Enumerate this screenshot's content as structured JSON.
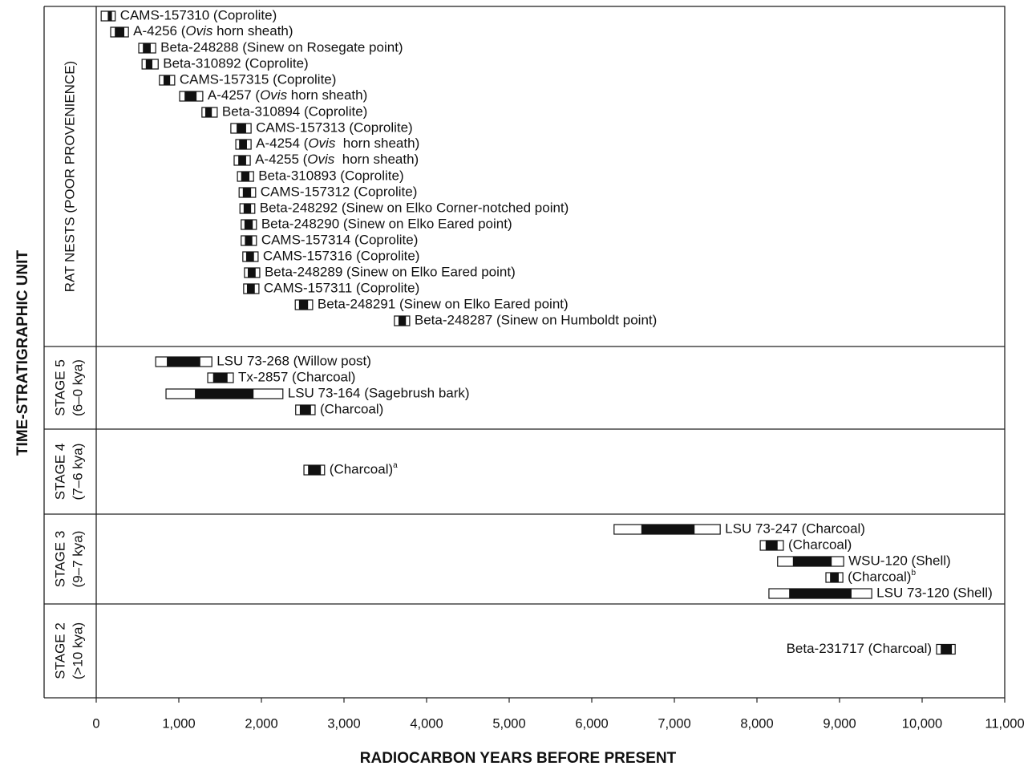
{
  "chart_data": {
    "type": "range",
    "xlabel": "RADIOCARBON YEARS BEFORE PRESENT",
    "ylabel": "TIME-STRATIGRAPHIC UNIT",
    "xlim": [
      0,
      11000
    ],
    "xticks": [
      0,
      {
        "value": 1000,
        "label": "1,000"
      },
      {
        "value": 2000,
        "label": "2,000"
      },
      {
        "value": 3000,
        "label": "3,000"
      },
      {
        "value": 4000,
        "label": "4,000"
      },
      {
        "value": 5000,
        "label": "5,000"
      },
      {
        "value": 6000,
        "label": "6,000"
      },
      {
        "value": 7000,
        "label": "7,000"
      },
      {
        "value": 8000,
        "label": "8,000"
      },
      {
        "value": 9000,
        "label": "9,000"
      },
      {
        "value": 10000,
        "label": "10,000"
      },
      {
        "value": 11000,
        "label": "11,000"
      }
    ],
    "groups": [
      {
        "name": "RAT NESTS (POOR PROVENIENCE)",
        "items": [
          {
            "label": "CAMS-157310 (Coprolite)",
            "outer": [
              60,
              230
            ],
            "inner": [
              140,
              190
            ]
          },
          {
            "label": "A-4256 (Ovis horn sheath)",
            "italic": "Ovis",
            "outer": [
              175,
              390
            ],
            "inner": [
              225,
              340
            ]
          },
          {
            "label": "Beta-248288 (Sinew on Rosegate point)",
            "outer": [
              515,
              720
            ],
            "inner": [
              565,
              660
            ]
          },
          {
            "label": "Beta-310892 (Coprolite)",
            "outer": [
              555,
              750
            ],
            "inner": [
              600,
              680
            ]
          },
          {
            "label": "CAMS-157315 (Coprolite)",
            "outer": [
              765,
              950
            ],
            "inner": [
              815,
              895
            ]
          },
          {
            "label": "A-4257 (Ovis horn sheath)",
            "italic": "Ovis",
            "outer": [
              1010,
              1290
            ],
            "inner": [
              1070,
              1215
            ]
          },
          {
            "label": "Beta-310894 (Coprolite)",
            "outer": [
              1280,
              1465
            ],
            "inner": [
              1320,
              1400
            ]
          },
          {
            "label": "CAMS-157313 (Coprolite)",
            "outer": [
              1630,
              1875
            ],
            "inner": [
              1700,
              1815
            ]
          },
          {
            "label": "A-4254 (Ovis  horn sheath)",
            "italic": "Ovis",
            "outer": [
              1690,
              1875
            ],
            "inner": [
              1730,
              1825
            ]
          },
          {
            "label": "A-4255 (Ovis  horn sheath)",
            "italic": "Ovis",
            "outer": [
              1670,
              1865
            ],
            "inner": [
              1720,
              1815
            ]
          },
          {
            "label": "Beta-310893 (Coprolite)",
            "outer": [
              1710,
              1905
            ],
            "inner": [
              1755,
              1855
            ]
          },
          {
            "label": "CAMS-157312 (Coprolite)",
            "outer": [
              1730,
              1930
            ],
            "inner": [
              1775,
              1875
            ]
          },
          {
            "label": "Beta-248292 (Sinew on Elko Corner-notched point)",
            "outer": [
              1740,
              1920
            ],
            "inner": [
              1785,
              1875
            ]
          },
          {
            "label": "Beta-248290 (Sinew on Elko Eared point)",
            "outer": [
              1755,
              1940
            ],
            "inner": [
              1795,
              1895
            ]
          },
          {
            "label": "CAMS-157314 (Coprolite)",
            "outer": [
              1755,
              1940
            ],
            "inner": [
              1800,
              1890
            ]
          },
          {
            "label": "CAMS-157316 (Coprolite)",
            "outer": [
              1775,
              1960
            ],
            "inner": [
              1815,
              1910
            ]
          },
          {
            "label": "Beta-248289 (Sinew on Elko Eared point)",
            "outer": [
              1795,
              1980
            ],
            "inner": [
              1835,
              1930
            ]
          },
          {
            "label": "CAMS-157311 (Coprolite)",
            "outer": [
              1785,
              1970
            ],
            "inner": [
              1825,
              1920
            ]
          },
          {
            "label": "Beta-248291 (Sinew on Elko Eared point)",
            "outer": [
              2410,
              2620
            ],
            "inner": [
              2455,
              2565
            ]
          },
          {
            "label": "Beta-248287 (Sinew on Humboldt point)",
            "outer": [
              3610,
              3795
            ],
            "inner": [
              3660,
              3750
            ]
          }
        ]
      },
      {
        "name": "STAGE 5",
        "subtitle": "(6–0 kya)",
        "items": [
          {
            "label": "LSU 73-268 (Willow post)",
            "outer": [
              720,
              1400
            ],
            "inner": [
              855,
              1260
            ]
          },
          {
            "label": "Tx-2857 (Charcoal)",
            "outer": [
              1350,
              1660
            ],
            "inner": [
              1415,
              1590
            ]
          },
          {
            "label": "LSU 73-164 (Sagebrush bark)",
            "outer": [
              845,
              2260
            ],
            "inner": [
              1195,
              1905
            ]
          },
          {
            "label": "(Charcoal)",
            "outer": [
              2415,
              2650
            ],
            "inner": [
              2465,
              2600
            ]
          }
        ]
      },
      {
        "name": "STAGE 4",
        "subtitle": "(7–6 kya)",
        "items": [
          {
            "label": "(Charcoal)",
            "note": "a",
            "outer": [
              2515,
              2765
            ],
            "inner": [
              2565,
              2720
            ]
          }
        ]
      },
      {
        "name": "STAGE 3",
        "subtitle": "(9–7 kya)",
        "items": [
          {
            "label": "LSU 73-247 (Charcoal)",
            "outer": [
              6270,
              7555
            ],
            "inner": [
              6600,
              7245
            ]
          },
          {
            "label": "(Charcoal)",
            "outer": [
              8040,
              8320
            ],
            "inner": [
              8105,
              8250
            ]
          },
          {
            "label": "WSU-120 (Shell)",
            "outer": [
              8250,
              9050
            ],
            "inner": [
              8435,
              8905
            ]
          },
          {
            "label": "(Charcoal)",
            "note": "b",
            "outer": [
              8835,
              9040
            ],
            "inner": [
              8885,
              8990
            ]
          },
          {
            "label": "LSU 73-120 (Shell)",
            "outer": [
              8145,
              9390
            ],
            "inner": [
              8390,
              9145
            ]
          }
        ]
      },
      {
        "name": "STAGE 2",
        "subtitle": "(>10 kya)",
        "items": [
          {
            "label": "Beta-231717 (Charcoal)",
            "outer": [
              10175,
              10400
            ],
            "inner": [
              10225,
              10360
            ]
          }
        ]
      }
    ]
  }
}
